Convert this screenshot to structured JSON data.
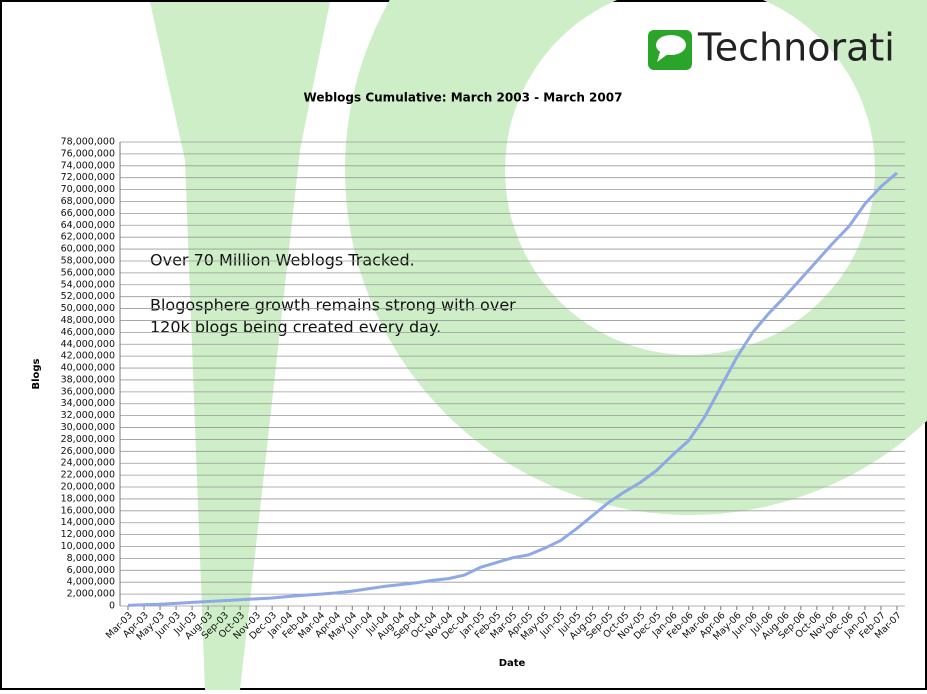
{
  "brand": "Technorati",
  "chart_data": {
    "type": "line",
    "title": "Weblogs Cumulative: March 2003 - March 2007",
    "x_label": "Date",
    "y_label": "Blogs",
    "annotation": [
      "Over 70 Million Weblogs Tracked.",
      "Blogosphere growth remains strong with over",
      "120k blogs being created every day."
    ],
    "categories": [
      "Mar-03",
      "Apr-03",
      "May-03",
      "Jun-03",
      "Jul-03",
      "Aug-03",
      "Sep-03",
      "Oct-03",
      "Nov-03",
      "Dec-03",
      "Jan-04",
      "Feb-04",
      "Mar-04",
      "Apr-04",
      "May-04",
      "Jun-04",
      "Jul-04",
      "Aug-04",
      "Sep-04",
      "Oct-04",
      "Nov-04",
      "Dec-04",
      "Jan-05",
      "Feb-05",
      "Mar-05",
      "Apr-05",
      "May-05",
      "Jun-05",
      "Jul-05",
      "Aug-05",
      "Sep-05",
      "Oct-05",
      "Nov-05",
      "Dec-05",
      "Jan-06",
      "Feb-06",
      "Mar-06",
      "Apr-06",
      "May-06",
      "Jun-06",
      "Jul-06",
      "Aug-06",
      "Sep-06",
      "Oct-06",
      "Nov-06",
      "Dec-06",
      "Jan-07",
      "Feb-07",
      "Mar-07"
    ],
    "series": [
      {
        "name": "Blogs",
        "color": "#8fa8e6",
        "values": [
          100000,
          200000,
          300000,
          450000,
          600000,
          750000,
          900000,
          1050000,
          1200000,
          1350000,
          1600000,
          1800000,
          2000000,
          2200000,
          2500000,
          2900000,
          3300000,
          3600000,
          3900000,
          4300000,
          4600000,
          5200000,
          6500000,
          7300000,
          8100000,
          8600000,
          9700000,
          11000000,
          13000000,
          15200000,
          17400000,
          19200000,
          20800000,
          22800000,
          25400000,
          27800000,
          31800000,
          36800000,
          41800000,
          46000000,
          49200000,
          52000000,
          55000000,
          58000000,
          61000000,
          63800000,
          67600000,
          70500000,
          72800000
        ]
      }
    ],
    "ylim": [
      0,
      78000000
    ],
    "yticks": [
      0,
      {
        "value": 2000000,
        "label": "2,000,000"
      },
      {
        "value": 4000000,
        "label": "4,000,000"
      },
      {
        "value": 6000000,
        "label": "6,000,000"
      },
      {
        "value": 8000000,
        "label": "8,000,000"
      },
      {
        "value": 10000000,
        "label": "10,000,000"
      },
      {
        "value": 12000000,
        "label": "12,000,000"
      },
      {
        "value": 14000000,
        "label": "14,000,000"
      },
      {
        "value": 16000000,
        "label": "16,000,000"
      },
      {
        "value": 18000000,
        "label": "18,000,000"
      },
      {
        "value": 20000000,
        "label": "20,000,000"
      },
      {
        "value": 22000000,
        "label": "22,000,000"
      },
      {
        "value": 24000000,
        "label": "24,000,000"
      },
      {
        "value": 26000000,
        "label": "26,000,000"
      },
      {
        "value": 28000000,
        "label": "28,000,000"
      },
      {
        "value": 30000000,
        "label": "30,000,000"
      },
      {
        "value": 32000000,
        "label": "32,000,000"
      },
      {
        "value": 34000000,
        "label": "34,000,000"
      },
      {
        "value": 36000000,
        "label": "36,000,000"
      },
      {
        "value": 38000000,
        "label": "38,000,000"
      },
      {
        "value": 40000000,
        "label": "40,000,000"
      },
      {
        "value": 42000000,
        "label": "42,000,000"
      },
      {
        "value": 44000000,
        "label": "44,000,000"
      },
      {
        "value": 46000000,
        "label": "46,000,000"
      },
      {
        "value": 48000000,
        "label": "48,000,000"
      },
      {
        "value": 50000000,
        "label": "50,000,000"
      },
      {
        "value": 52000000,
        "label": "52,000,000"
      },
      {
        "value": 54000000,
        "label": "54,000,000"
      },
      {
        "value": 56000000,
        "label": "56,000,000"
      },
      {
        "value": 58000000,
        "label": "58,000,000"
      },
      {
        "value": 60000000,
        "label": "60,000,000"
      },
      {
        "value": 62000000,
        "label": "62,000,000"
      },
      {
        "value": 64000000,
        "label": "64,000,000"
      },
      {
        "value": 66000000,
        "label": "66,000,000"
      },
      {
        "value": 68000000,
        "label": "68,000,000"
      },
      {
        "value": 70000000,
        "label": "70,000,000"
      },
      {
        "value": 72000000,
        "label": "72,000,000"
      },
      {
        "value": 74000000,
        "label": "74,000,000"
      },
      {
        "value": 76000000,
        "label": "76,000,000"
      },
      {
        "value": 78000000,
        "label": "78,000,000"
      }
    ],
    "grid": true
  }
}
